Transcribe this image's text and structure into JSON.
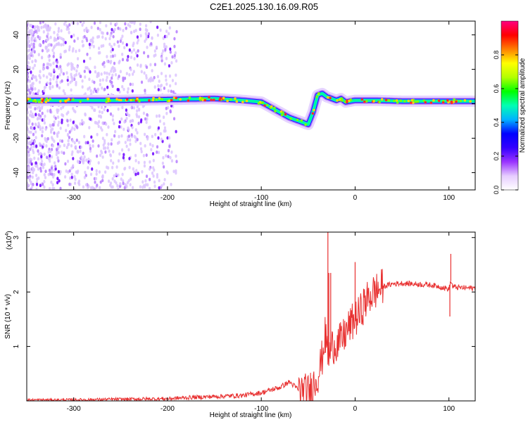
{
  "figure_title": "C2E1.2025.130.16.09.R05",
  "chart_data": [
    {
      "type": "heatmap",
      "xlabel": "Height of straight line (km)",
      "ylabel": "Frequency (Hz)",
      "xlim": [
        -350,
        128
      ],
      "ylim": [
        -50,
        48
      ],
      "x_ticks": [
        -300,
        -200,
        -100,
        0,
        100
      ],
      "y_ticks": [
        -40,
        -20,
        0,
        20,
        40
      ],
      "colorbar": {
        "label": "Normalized spectral amplitude",
        "range": [
          0,
          1
        ],
        "ticks": [
          "0.0",
          "0.2",
          "0.4",
          "0.6",
          "0.8"
        ],
        "colors": [
          "#ffffff",
          "#e6ccff",
          "#9933ff",
          "#3300ff",
          "#0000ff",
          "#00b3ff",
          "#00ffb3",
          "#00ff00",
          "#b3ff00",
          "#ffff00",
          "#ff8000",
          "#ff0000",
          "#ff0080"
        ]
      },
      "ridge": {
        "x": [
          -350,
          -300,
          -250,
          -200,
          -150,
          -120,
          -100,
          -90,
          -80,
          -70,
          -60,
          -50,
          -45,
          -40,
          -35,
          -30,
          -25,
          -20,
          -15,
          -10,
          -5,
          0,
          20,
          50,
          80,
          100,
          128
        ],
        "y": [
          2,
          2,
          2,
          2.5,
          3,
          2,
          1,
          -2,
          -5,
          -8,
          -10,
          -12,
          -5,
          5,
          6,
          4,
          3,
          2,
          3,
          1,
          1.5,
          2,
          2,
          1.5,
          1.5,
          1.5,
          1.5
        ]
      }
    },
    {
      "type": "line",
      "xlabel": "Height of straight line (km)",
      "ylabel": "SNR (10 * v/v)",
      "y_multiplier": "(x10",
      "y_multiplier_exp": "4",
      "y_multiplier_close": ")",
      "xlim": [
        -350,
        128
      ],
      "ylim": [
        0,
        3.1
      ],
      "x_ticks": [
        -300,
        -200,
        -100,
        0,
        100
      ],
      "y_ticks": [
        1,
        2,
        3
      ],
      "line_color": "#e83030",
      "series": [
        {
          "x": [
            -350,
            -300,
            -250,
            -200,
            -180,
            -150,
            -120,
            -100,
            -80,
            -70,
            -60,
            -50,
            -45,
            -40,
            -35,
            -32,
            -30,
            -28,
            -25,
            -20,
            -15,
            -10,
            -5,
            0,
            5,
            10,
            20,
            30,
            40,
            50,
            60,
            70,
            80,
            90,
            100,
            102,
            104,
            110,
            128
          ],
          "y": [
            0.02,
            0.02,
            0.03,
            0.04,
            0.06,
            0.08,
            0.1,
            0.15,
            0.25,
            0.35,
            0.2,
            0.15,
            0.3,
            0.45,
            0.8,
            1.2,
            1.0,
            0.8,
            1.0,
            1.05,
            1.1,
            1.25,
            1.4,
            1.5,
            1.6,
            1.8,
            2.0,
            2.1,
            2.15,
            2.16,
            2.15,
            2.14,
            2.13,
            2.1,
            2.05,
            2.2,
            2.1,
            2.08,
            2.07
          ]
        }
      ],
      "spikes": {
        "x": [
          -29,
          -28,
          -26,
          0,
          101,
          102
        ],
        "y": [
          3.1,
          2.35,
          2.35,
          2.55,
          1.55,
          2.7
        ]
      }
    }
  ]
}
